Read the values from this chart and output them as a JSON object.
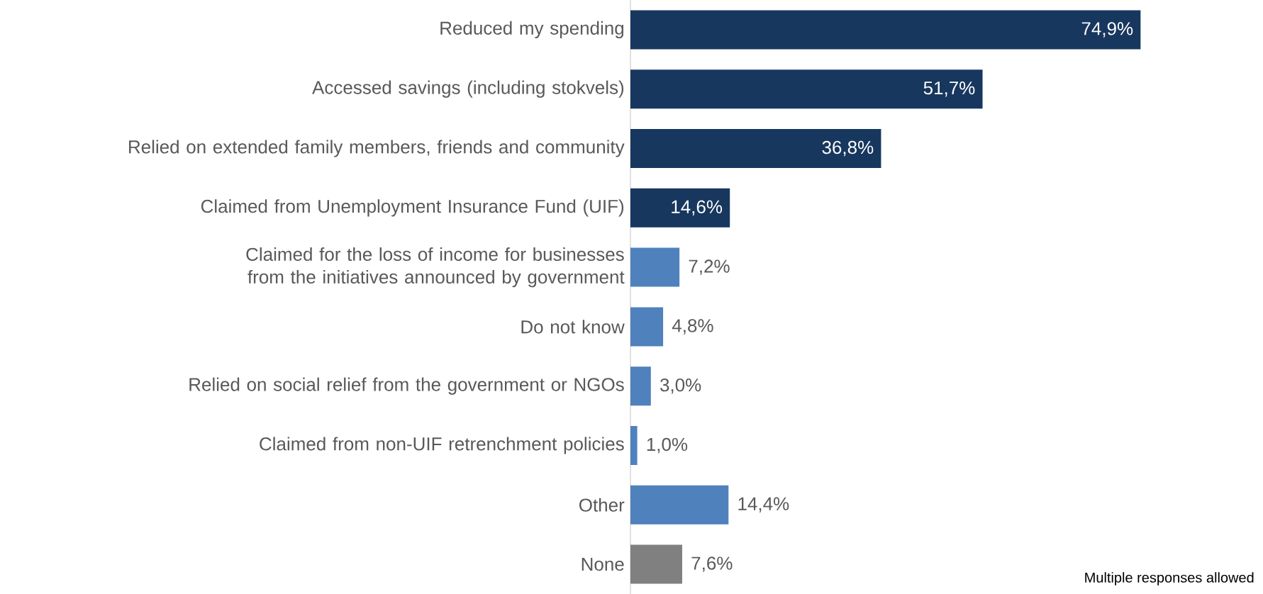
{
  "chart_data": {
    "type": "bar",
    "orientation": "horizontal",
    "categories": [
      "Reduced my spending",
      "Accessed savings (including stokvels)",
      "Relied on extended family members, friends and community",
      "Claimed from Unemployment Insurance Fund (UIF)",
      "Claimed for the loss of income for businesses from the initiatives announced by government",
      "Do not know",
      "Relied on social relief from the government or NGOs",
      "Claimed from non-UIF retrenchment policies",
      "Other",
      "None"
    ],
    "values": [
      74.9,
      51.7,
      36.8,
      14.6,
      7.2,
      4.8,
      3.0,
      1.0,
      14.4,
      7.6
    ],
    "value_labels": [
      "74,9%",
      "51,7%",
      "36,8%",
      "14,6%",
      "7,2%",
      "4,8%",
      "3,0%",
      "1,0%",
      "14,4%",
      "7,6%"
    ],
    "colors": [
      "#17375e",
      "#17375e",
      "#17375e",
      "#17375e",
      "#4f81bd",
      "#4f81bd",
      "#4f81bd",
      "#4f81bd",
      "#4f81bd",
      "#808080"
    ],
    "annotations": [
      "Multiple responses allowed"
    ]
  }
}
